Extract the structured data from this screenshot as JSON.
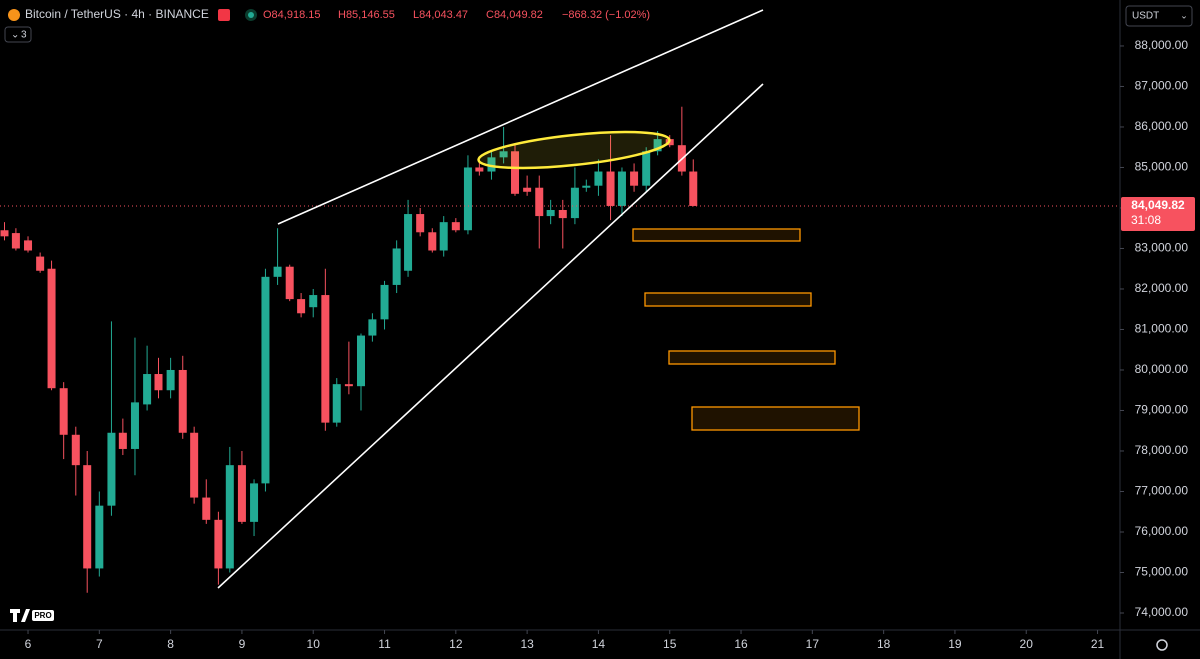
{
  "header": {
    "symbol": "Bitcoin / TetherUS · 4h · BINANCE",
    "open": "O84,918.15",
    "high": "H85,146.55",
    "low": "L84,043.47",
    "close": "C84,049.82",
    "change": "−868.32 (−1.02%)",
    "indicators": "3",
    "currency": "USDT"
  },
  "chart_data": {
    "type": "candlestick",
    "up_color": "#22ab94",
    "down_color": "#f7525f",
    "x": [
      5.67,
      5.83,
      6,
      6.17,
      6.33,
      6.5,
      6.67,
      6.83,
      7,
      7.17,
      7.33,
      7.5,
      7.67,
      7.83,
      8,
      8.17,
      8.33,
      8.5,
      8.67,
      8.83,
      9,
      9.17,
      9.33,
      9.5,
      9.67,
      9.83,
      10,
      10.17,
      10.33,
      10.5,
      10.67,
      10.83,
      11,
      11.17,
      11.33,
      11.5,
      11.67,
      11.83,
      12,
      12.17,
      12.33,
      12.5,
      12.67,
      12.83,
      13,
      13.17,
      13.33,
      13.5,
      13.67,
      13.83,
      14,
      14.17,
      14.33,
      14.5,
      14.67,
      14.83,
      15,
      15.17,
      15.33
    ],
    "open": [
      83450,
      83380,
      83200,
      82800,
      82500,
      79550,
      78400,
      77650,
      75100,
      76650,
      78450,
      78050,
      79150,
      79900,
      79500,
      80000,
      78450,
      76850,
      76300,
      75100,
      77650,
      76250,
      77200,
      82300,
      82550,
      81750,
      81550,
      81850,
      78700,
      79650,
      79600,
      80850,
      81250,
      82100,
      82450,
      83850,
      83400,
      82950,
      83650,
      83450,
      85000,
      84900,
      85250,
      85400,
      84500,
      84500,
      83800,
      83950,
      83750,
      84500,
      84550,
      84900,
      84050,
      84900,
      84550,
      85400,
      85700,
      85550,
      84900
    ],
    "high": [
      83650,
      83500,
      83300,
      82900,
      82700,
      79700,
      78600,
      78000,
      77000,
      81200,
      78800,
      80800,
      80600,
      80300,
      80300,
      80350,
      78600,
      77300,
      76500,
      78100,
      78000,
      77300,
      82500,
      83500,
      82600,
      81900,
      82000,
      82500,
      79800,
      80700,
      80900,
      81400,
      82200,
      83200,
      84200,
      84000,
      83500,
      83800,
      83750,
      85300,
      85200,
      85400,
      86000,
      85600,
      84800,
      84800,
      84200,
      84200,
      85000,
      84700,
      85200,
      85800,
      85000,
      85100,
      85500,
      85900,
      85800,
      86500,
      85200
    ],
    "low": [
      83200,
      82950,
      82900,
      82400,
      79500,
      77800,
      76900,
      74500,
      74900,
      76400,
      77900,
      77400,
      79000,
      79300,
      79300,
      78300,
      76700,
      76200,
      74700,
      75000,
      76200,
      75900,
      77000,
      82100,
      81700,
      81300,
      81300,
      78500,
      78600,
      79400,
      79000,
      80700,
      81000,
      81900,
      82300,
      83300,
      82900,
      82800,
      83400,
      83350,
      84800,
      84700,
      85100,
      84300,
      84300,
      83000,
      83600,
      83000,
      83600,
      84400,
      84300,
      83700,
      83800,
      84400,
      84400,
      85300,
      85500,
      84800,
      84040
    ],
    "close": [
      83300,
      83000,
      82950,
      82450,
      79550,
      78400,
      77650,
      75100,
      76650,
      78450,
      78050,
      79200,
      79900,
      79500,
      80000,
      78450,
      76850,
      76300,
      75100,
      77650,
      76250,
      77200,
      82300,
      82550,
      81750,
      81400,
      81850,
      78700,
      79650,
      79600,
      80850,
      81250,
      82100,
      83000,
      83850,
      83400,
      82950,
      83650,
      83450,
      85000,
      84900,
      85250,
      85400,
      84350,
      84400,
      83800,
      83950,
      83750,
      84500,
      84550,
      84900,
      84050,
      84900,
      84550,
      85400,
      85700,
      85550,
      84900,
      84049.82
    ],
    "last_label": {
      "price": "84,049.82",
      "countdown": "31:08"
    },
    "xlim": [
      5.607,
      21.315
    ],
    "xticks": [
      6,
      7,
      8,
      9,
      10,
      11,
      12,
      13,
      14,
      15,
      16,
      17,
      18,
      19,
      20,
      21
    ],
    "ylim": [
      73580,
      89135
    ],
    "yticks": [
      {
        "value": 74000,
        "label": "74,000.00"
      },
      {
        "value": 75000,
        "label": "75,000.00"
      },
      {
        "value": 76000,
        "label": "76,000.00"
      },
      {
        "value": 77000,
        "label": "77,000.00"
      },
      {
        "value": 78000,
        "label": "78,000.00"
      },
      {
        "value": 79000,
        "label": "79,000.00"
      },
      {
        "value": 80000,
        "label": "80,000.00"
      },
      {
        "value": 81000,
        "label": "81,000.00"
      },
      {
        "value": 82000,
        "label": "82,000.00"
      },
      {
        "value": 83000,
        "label": "83,000.00"
      },
      {
        "value": 84000,
        "label": "84,000.00"
      },
      {
        "value": 85000,
        "label": "85,000.00"
      },
      {
        "value": 86000,
        "label": "86,000.00"
      },
      {
        "value": 87000,
        "label": "87,000.00"
      },
      {
        "value": 88000,
        "label": "88,000.00"
      }
    ],
    "grid": false
  }
}
